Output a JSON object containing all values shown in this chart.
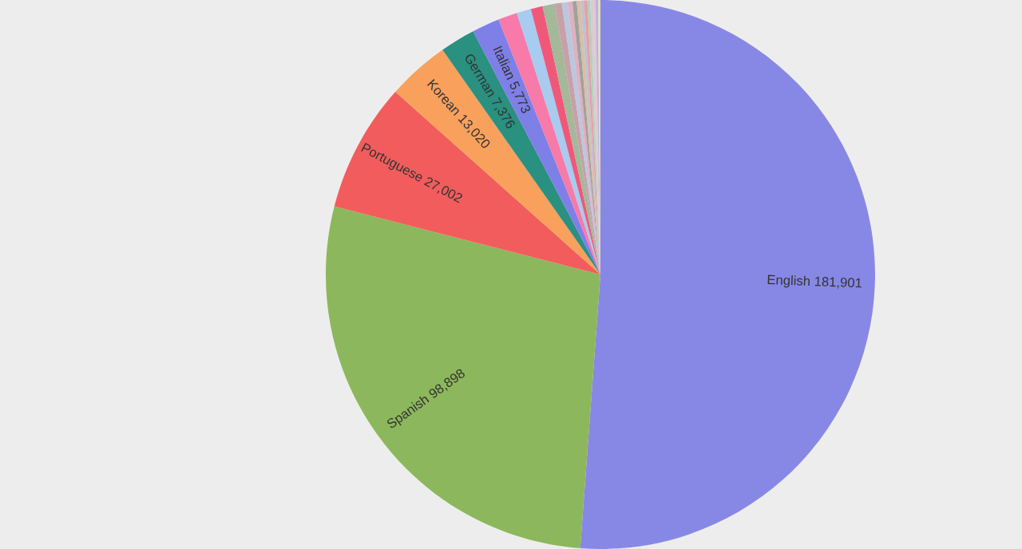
{
  "chart_data": {
    "type": "pie",
    "categories": [
      "English",
      "Spanish",
      "Portuguese",
      "Korean",
      "German",
      "Italian",
      null,
      null,
      null,
      null,
      null,
      null,
      null,
      null,
      null,
      null,
      null,
      null,
      null,
      null,
      null,
      null
    ],
    "values": [
      181901,
      98898,
      27002,
      13020,
      7376,
      5773,
      4000,
      3000,
      2500,
      2500,
      1500,
      1200,
      1000,
      900,
      800,
      700,
      700,
      600,
      600,
      500,
      500,
      500
    ],
    "value_labels": [
      "181,901",
      "98,898",
      "27,002",
      "13,020",
      "7,376",
      "5,773",
      null,
      null,
      null,
      null,
      null,
      null,
      null,
      null,
      null,
      null,
      null,
      null,
      null,
      null,
      null,
      null
    ],
    "colors": [
      "#8788e6",
      "#8db75c",
      "#f25c5c",
      "#f9a05c",
      "#2a9080",
      "#7f7fe8",
      "#f77aa8",
      "#a8cbf0",
      "#f0587a",
      "#a4b89a",
      "#c8a0a8",
      "#b8c8e0",
      "#e0b0c0",
      "#a0a0a0",
      "#d8c0a0",
      "#c0c0d8",
      "#e8a0a0",
      "#b0d0c0",
      "#d0d0d0",
      "#f0c0d0",
      "#c0b0e0",
      "#e0e0b0"
    ]
  }
}
